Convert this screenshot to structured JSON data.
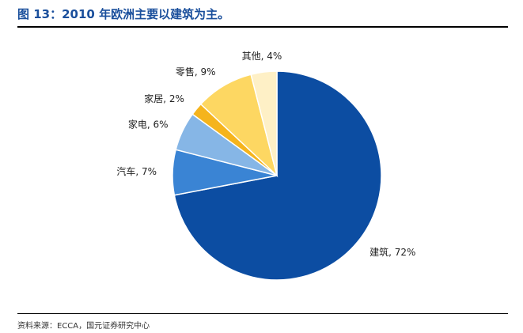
{
  "figure": {
    "title": "图 13：2010 年欧洲主要以建筑为主。",
    "source": "资料来源：ECCA，国元证券研究中心"
  },
  "chart_data": {
    "type": "pie",
    "title": "",
    "slices": [
      {
        "label": "建筑",
        "value": 72,
        "display": "建筑, 72%",
        "color": "#0c4da2"
      },
      {
        "label": "汽车",
        "value": 7,
        "display": "汽车, 7%",
        "color": "#3a84d4"
      },
      {
        "label": "家电",
        "value": 6,
        "display": "家电, 6%",
        "color": "#86b6e6"
      },
      {
        "label": "家居",
        "value": 2,
        "display": "家居, 2%",
        "color": "#f5b41d"
      },
      {
        "label": "零售",
        "value": 9,
        "display": "零售, 9%",
        "color": "#fdd762"
      },
      {
        "label": "其他",
        "value": 4,
        "display": "其他, 4%",
        "color": "#fef0c6"
      }
    ],
    "start": "12 o'clock",
    "direction": "clockwise",
    "legend": "none"
  }
}
